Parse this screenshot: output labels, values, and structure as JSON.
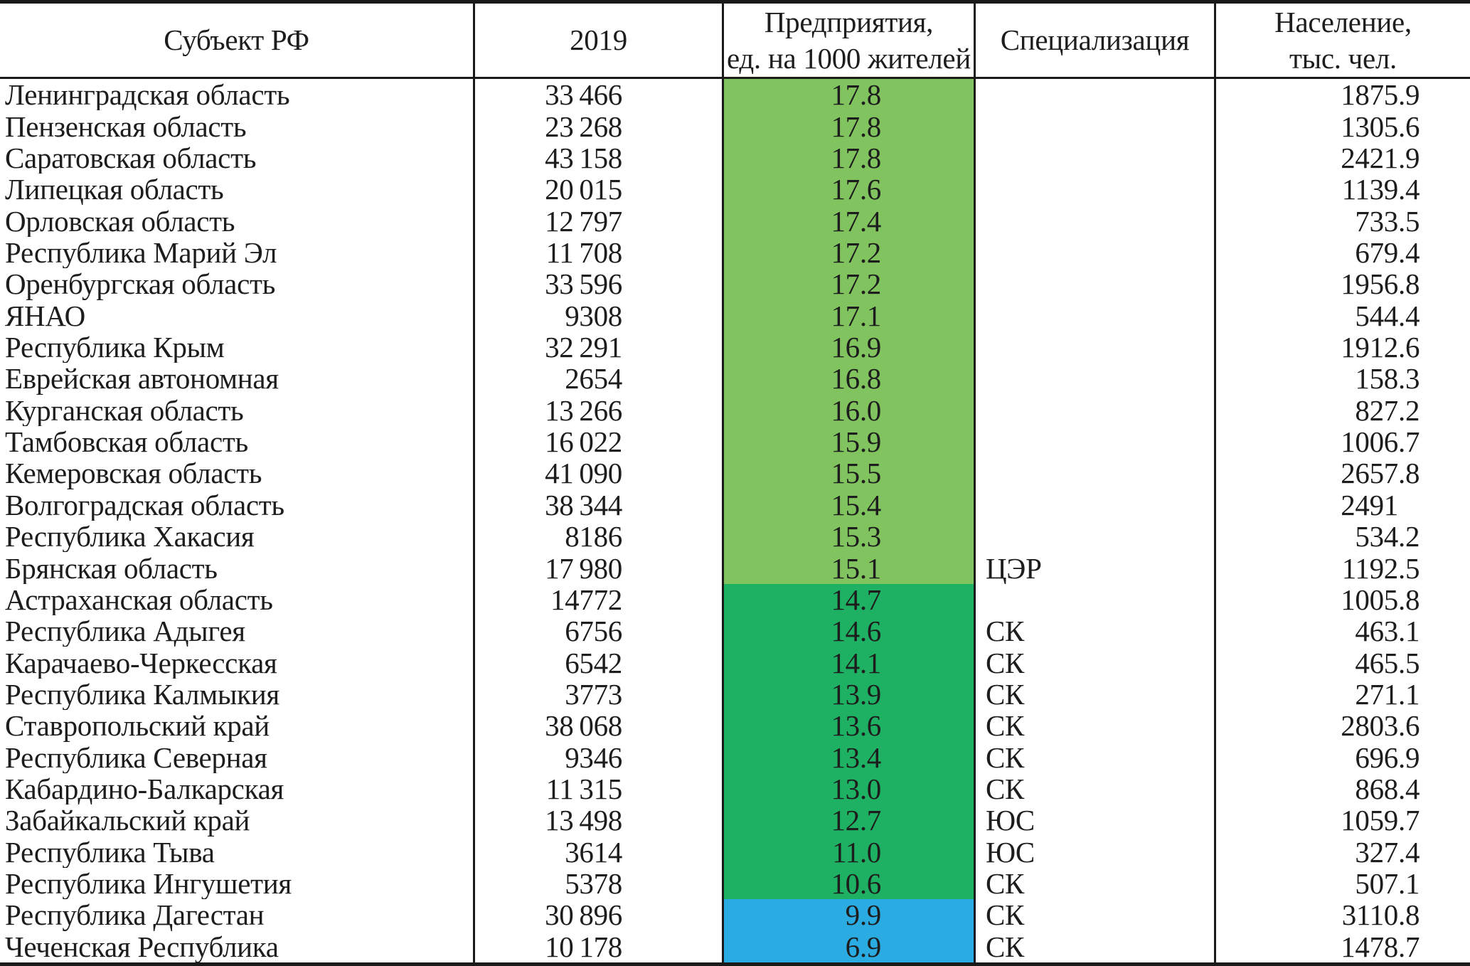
{
  "table": {
    "columns": [
      {
        "label": "Субъект  РФ"
      },
      {
        "label": "2019"
      },
      {
        "label": "Предприятия,\nед. на 1000 жителей"
      },
      {
        "label": "Специализация"
      },
      {
        "label": "Население,\nтыс. чел."
      }
    ],
    "rows": [
      {
        "region": "Ленинградская область",
        "y2019": "33 466",
        "rate": "17.8",
        "spec": "",
        "population": "1875.9",
        "band": "light_green"
      },
      {
        "region": "Пензенская область",
        "y2019": "23 268",
        "rate": "17.8",
        "spec": "",
        "population": "1305.6",
        "band": "light_green"
      },
      {
        "region": "Саратовская область",
        "y2019": "43 158",
        "rate": "17.8",
        "spec": "",
        "population": "2421.9",
        "band": "light_green"
      },
      {
        "region": "Липецкая область",
        "y2019": "20 015",
        "rate": "17.6",
        "spec": "",
        "population": "1139.4",
        "band": "light_green"
      },
      {
        "region": "Орловская область",
        "y2019": "12 797",
        "rate": "17.4",
        "spec": "",
        "population": "733.5",
        "band": "light_green"
      },
      {
        "region": "Республика Марий Эл",
        "y2019": "11 708",
        "rate": "17.2",
        "spec": "",
        "population": "679.4",
        "band": "light_green"
      },
      {
        "region": "Оренбургская область",
        "y2019": "33 596",
        "rate": "17.2",
        "spec": "",
        "population": "1956.8",
        "band": "light_green"
      },
      {
        "region": "ЯНАО",
        "y2019": "9308",
        "rate": "17.1",
        "spec": "",
        "population": "544.4",
        "band": "light_green"
      },
      {
        "region": "Республика Крым",
        "y2019": "32 291",
        "rate": "16.9",
        "spec": "",
        "population": "1912.6",
        "band": "light_green"
      },
      {
        "region": "Еврейская автономная",
        "y2019": "2654",
        "rate": "16.8",
        "spec": "",
        "population": "158.3",
        "band": "light_green"
      },
      {
        "region": "Курганская область",
        "y2019": "13 266",
        "rate": "16.0",
        "spec": "",
        "population": "827.2",
        "band": "light_green"
      },
      {
        "region": "Тамбовская область",
        "y2019": "16 022",
        "rate": "15.9",
        "spec": "",
        "population": "1006.7",
        "band": "light_green"
      },
      {
        "region": "Кемеровская область",
        "y2019": "41 090",
        "rate": "15.5",
        "spec": "",
        "population": "2657.8",
        "band": "light_green"
      },
      {
        "region": "Волгоградская область",
        "y2019": "38 344",
        "rate": "15.4",
        "spec": "",
        "population": "2491",
        "band": "light_green"
      },
      {
        "region": "Республика Хакасия",
        "y2019": "8186",
        "rate": "15.3",
        "spec": "",
        "population": "534.2",
        "band": "light_green"
      },
      {
        "region": "Брянская область",
        "y2019": "17 980",
        "rate": "15.1",
        "spec": "ЦЭР",
        "population": "1192.5",
        "band": "light_green"
      },
      {
        "region": "Астраханская область",
        "y2019": "14772",
        "rate": "14.7",
        "spec": "",
        "population": "1005.8",
        "band": "dark_green"
      },
      {
        "region": "Республика Адыгея",
        "y2019": "6756",
        "rate": "14.6",
        "spec": "СК",
        "population": "463.1",
        "band": "dark_green"
      },
      {
        "region": "Карачаево-Черкесская",
        "y2019": "6542",
        "rate": "14.1",
        "spec": "СК",
        "population": "465.5",
        "band": "dark_green"
      },
      {
        "region": "Республика Калмыкия",
        "y2019": "3773",
        "rate": "13.9",
        "spec": "СК",
        "population": "271.1",
        "band": "dark_green"
      },
      {
        "region": "Ставропольский край",
        "y2019": "38 068",
        "rate": "13.6",
        "spec": "СК",
        "population": "2803.6",
        "band": "dark_green"
      },
      {
        "region": "Республика Северная",
        "y2019": "9346",
        "rate": "13.4",
        "spec": "СК",
        "population": "696.9",
        "band": "dark_green"
      },
      {
        "region": "Кабардино-Балкарская",
        "y2019": "11 315",
        "rate": "13.0",
        "spec": "СК",
        "population": "868.4",
        "band": "dark_green"
      },
      {
        "region": "Забайкальский край",
        "y2019": "13 498",
        "rate": "12.7",
        "spec": "ЮС",
        "population": "1059.7",
        "band": "dark_green"
      },
      {
        "region": "Республика Тыва",
        "y2019": "3614",
        "rate": "11.0",
        "spec": "ЮС",
        "population": "327.4",
        "band": "dark_green"
      },
      {
        "region": "Республика Ингушетия",
        "y2019": "5378",
        "rate": "10.6",
        "spec": "СК",
        "population": "507.1",
        "band": "dark_green"
      },
      {
        "region": "Республика Дагестан",
        "y2019": "30 896",
        "rate": "9.9",
        "spec": "СК",
        "population": "3110.8",
        "band": "blue"
      },
      {
        "region": "Чеченская Республика",
        "y2019": "10 178",
        "rate": "6.9",
        "spec": "СК",
        "population": "1478.7",
        "band": "blue"
      }
    ]
  },
  "colors": {
    "light_green": "#80C35F",
    "dark_green": "#1FB163",
    "blue": "#2AACE3",
    "line": "#1A1A1A"
  }
}
